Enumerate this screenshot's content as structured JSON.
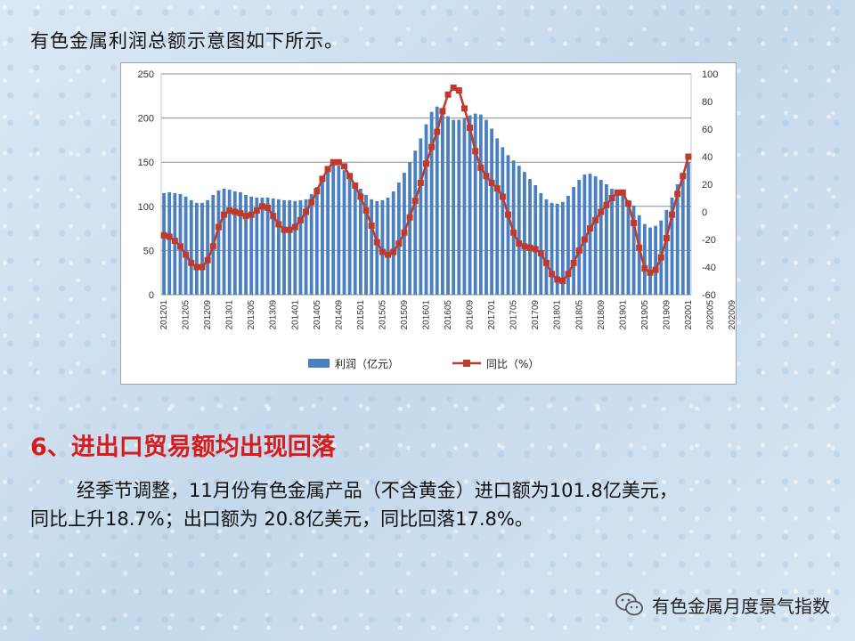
{
  "intro_text": "有色金属利润总额示意图如下所示。",
  "section_title": "6、进出口贸易额均出现回落",
  "paragraph": {
    "line1": "经季节调整，11月份有色金属产品（不含黄金）进口额为101.8亿美元，",
    "line2": "同比上升18.7%；出口额为 20.8亿美元，同比回落17.8%。"
  },
  "footer_text": "有色金属月度景气指数",
  "colors": {
    "bar": "#4a7fc0",
    "line": "#c0392b",
    "title_red": "#d61c1c"
  },
  "chart_data": {
    "type": "bar+line",
    "x_tick_labels": [
      "201201",
      "201205",
      "201209",
      "201301",
      "201305",
      "201309",
      "201401",
      "201405",
      "201409",
      "201501",
      "201505",
      "201509",
      "201601",
      "201605",
      "201609",
      "201701",
      "201705",
      "201709",
      "201801",
      "201805",
      "201809",
      "201901",
      "201905",
      "201909",
      "202001",
      "202005",
      "202009"
    ],
    "series": [
      {
        "name": "利润（亿元）",
        "axis": "left",
        "type": "bar",
        "values": [
          115,
          116,
          115,
          114,
          111,
          107,
          104,
          104,
          107,
          113,
          118,
          120,
          119,
          117,
          116,
          113,
          111,
          110,
          110,
          110,
          109,
          108,
          107,
          107,
          106,
          107,
          108,
          114,
          122,
          133,
          143,
          148,
          146,
          141,
          134,
          127,
          120,
          113,
          108,
          106,
          107,
          110,
          117,
          127,
          138,
          150,
          163,
          177,
          193,
          207,
          213,
          210,
          202,
          198,
          198,
          200,
          203,
          205,
          204,
          198,
          188,
          177,
          167,
          158,
          152,
          146,
          139,
          131,
          124,
          115,
          108,
          104,
          103,
          105,
          112,
          122,
          130,
          136,
          137,
          134,
          130,
          125,
          120,
          117,
          113,
          107,
          101,
          90,
          80,
          76,
          78,
          84,
          96,
          110,
          125,
          138,
          150
        ]
      },
      {
        "name": "同比（%）",
        "axis": "right",
        "type": "line",
        "values": [
          -17,
          -18,
          -21,
          -25,
          -31,
          -37,
          -40,
          -40,
          -35,
          -25,
          -11,
          -2,
          1,
          0,
          -1,
          -3,
          -2,
          1,
          4,
          3,
          -3,
          -9,
          -13,
          -13,
          -11,
          -6,
          0,
          7,
          15,
          24,
          31,
          36,
          36,
          33,
          26,
          19,
          11,
          1,
          -10,
          -22,
          -29,
          -31,
          -29,
          -23,
          -15,
          -4,
          8,
          21,
          35,
          47,
          58,
          73,
          85,
          90,
          88,
          75,
          61,
          44,
          32,
          26,
          21,
          17,
          11,
          -2,
          -15,
          -23,
          -25,
          -26,
          -27,
          -30,
          -37,
          -45,
          -49,
          -50,
          -45,
          -37,
          -28,
          -20,
          -12,
          -6,
          0,
          5,
          10,
          14,
          14,
          6,
          -8,
          -26,
          -41,
          -44,
          -42,
          -33,
          -19,
          -2,
          13,
          26,
          40
        ]
      }
    ],
    "y_left": {
      "min": 0,
      "max": 250,
      "ticks": [
        0,
        50,
        100,
        150,
        200,
        250
      ]
    },
    "y_right": {
      "min": -60,
      "max": 100,
      "ticks": [
        -60,
        -40,
        -20,
        0,
        20,
        40,
        60,
        80,
        100
      ]
    },
    "legend": [
      "利润（亿元）",
      "同比（%）"
    ],
    "legend_position": "bottom",
    "grid": true
  }
}
